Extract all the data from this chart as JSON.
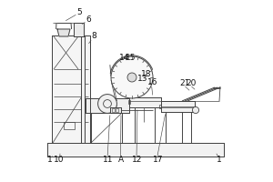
{
  "bg_color": "#ffffff",
  "lc": "#444444",
  "lw": 0.7,
  "fig_w": 3.0,
  "fig_h": 2.0,
  "labels": {
    "5": [
      0.185,
      0.935,
      "5"
    ],
    "6": [
      0.235,
      0.895,
      "6"
    ],
    "8": [
      0.265,
      0.8,
      "8"
    ],
    "1a": [
      0.025,
      0.12,
      "1"
    ],
    "10": [
      0.075,
      0.12,
      "10"
    ],
    "11": [
      0.345,
      0.12,
      "11"
    ],
    "A": [
      0.415,
      0.12,
      "A"
    ],
    "12": [
      0.505,
      0.12,
      "12"
    ],
    "13": [
      0.535,
      0.57,
      "13"
    ],
    "14": [
      0.435,
      0.68,
      "14"
    ],
    "15": [
      0.47,
      0.68,
      "15"
    ],
    "16": [
      0.59,
      0.545,
      "16"
    ],
    "17": [
      0.62,
      0.12,
      "17"
    ],
    "18": [
      0.555,
      0.595,
      "18"
    ],
    "20": [
      0.8,
      0.54,
      "20"
    ],
    "21": [
      0.765,
      0.54,
      "21"
    ],
    "1b": [
      0.955,
      0.12,
      "1"
    ]
  }
}
